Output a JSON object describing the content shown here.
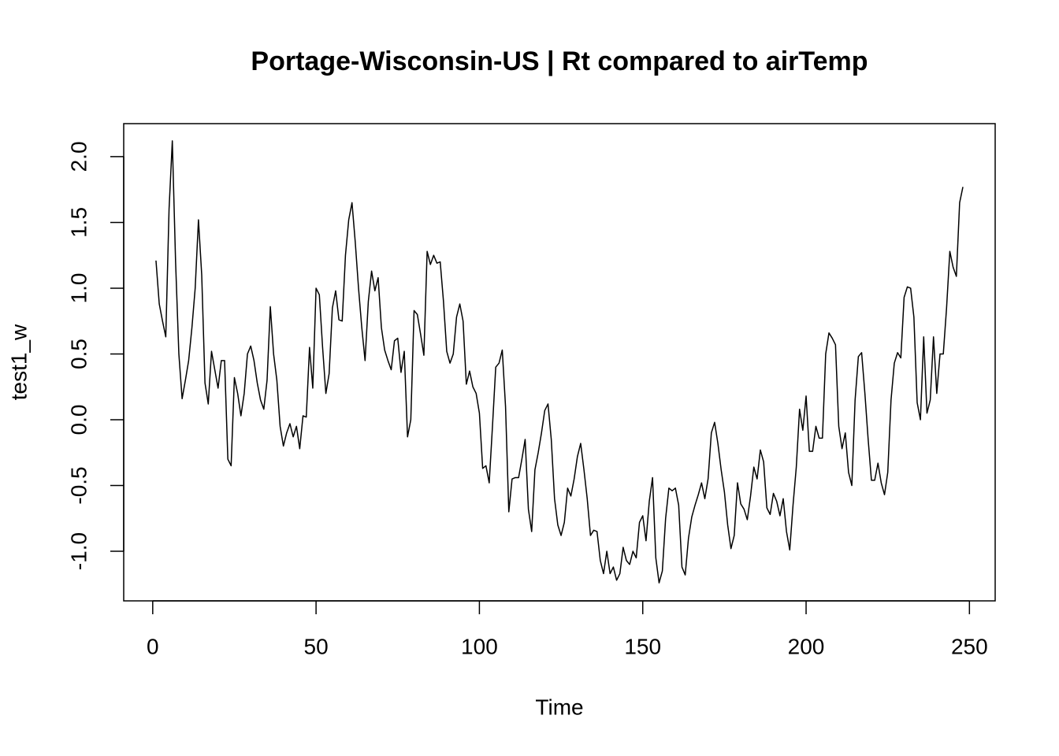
{
  "chart_data": {
    "type": "line",
    "title": "Portage-Wisconsin-US | Rt compared to airTemp",
    "x_label": "Time",
    "y_label": "test1_w",
    "x": [
      1,
      2,
      3,
      4,
      5,
      6,
      7,
      8,
      9,
      10,
      11,
      12,
      13,
      14,
      15,
      16,
      17,
      18,
      19,
      20,
      21,
      22,
      23,
      24,
      25,
      26,
      27,
      28,
      29,
      30,
      31,
      32,
      33,
      34,
      35,
      36,
      37,
      38,
      39,
      40,
      41,
      42,
      43,
      44,
      45,
      46,
      47,
      48,
      49,
      50,
      51,
      52,
      53,
      54,
      55,
      56,
      57,
      58,
      59,
      60,
      61,
      62,
      63,
      64,
      65,
      66,
      67,
      68,
      69,
      70,
      71,
      72,
      73,
      74,
      75,
      76,
      77,
      78,
      79,
      80,
      81,
      82,
      83,
      84,
      85,
      86,
      87,
      88,
      89,
      90,
      91,
      92,
      93,
      94,
      95,
      96,
      97,
      98,
      99,
      100,
      101,
      102,
      103,
      104,
      105,
      106,
      107,
      108,
      109,
      110,
      111,
      112,
      113,
      114,
      115,
      116,
      117,
      118,
      119,
      120,
      121,
      122,
      123,
      124,
      125,
      126,
      127,
      128,
      129,
      130,
      131,
      132,
      133,
      134,
      135,
      136,
      137,
      138,
      139,
      140,
      141,
      142,
      143,
      144,
      145,
      146,
      147,
      148,
      149,
      150,
      151,
      152,
      153,
      154,
      155,
      156,
      157,
      158,
      159,
      160,
      161,
      162,
      163,
      164,
      165,
      166,
      167,
      168,
      169,
      170,
      171,
      172,
      173,
      174,
      175,
      176,
      177,
      178,
      179,
      180,
      181,
      182,
      183,
      184,
      185,
      186,
      187,
      188,
      189,
      190,
      191,
      192,
      193,
      194,
      195,
      196,
      197,
      198,
      199,
      200,
      201,
      202,
      203,
      204,
      205,
      206,
      207,
      208,
      209,
      210,
      211,
      212,
      213,
      214,
      215,
      216,
      217,
      218,
      219,
      220,
      221,
      222,
      223,
      224,
      225,
      226,
      227,
      228,
      229,
      230,
      231,
      232,
      233,
      234,
      235,
      236,
      237,
      238,
      239,
      240,
      241,
      242,
      243,
      244,
      245,
      246,
      247,
      248
    ],
    "series": [
      {
        "name": "test1_w",
        "color": "#000000",
        "values": [
          1.21,
          0.88,
          0.75,
          0.63,
          1.6,
          2.12,
          1.2,
          0.5,
          0.16,
          0.3,
          0.45,
          0.7,
          1.0,
          1.52,
          1.1,
          0.28,
          0.12,
          0.52,
          0.38,
          0.24,
          0.45,
          0.45,
          -0.3,
          -0.35,
          0.32,
          0.2,
          0.03,
          0.2,
          0.5,
          0.56,
          0.45,
          0.28,
          0.15,
          0.08,
          0.3,
          0.86,
          0.5,
          0.3,
          -0.05,
          -0.2,
          -0.1,
          -0.03,
          -0.13,
          -0.05,
          -0.22,
          0.03,
          0.02,
          0.55,
          0.24,
          1.0,
          0.95,
          0.55,
          0.2,
          0.35,
          0.85,
          0.98,
          0.76,
          0.75,
          1.25,
          1.52,
          1.65,
          1.35,
          1.0,
          0.7,
          0.45,
          0.9,
          1.13,
          0.98,
          1.08,
          0.7,
          0.53,
          0.45,
          0.38,
          0.6,
          0.62,
          0.36,
          0.52,
          -0.13,
          0.0,
          0.83,
          0.8,
          0.65,
          0.49,
          1.28,
          1.18,
          1.25,
          1.19,
          1.2,
          0.9,
          0.52,
          0.43,
          0.5,
          0.78,
          0.88,
          0.75,
          0.27,
          0.37,
          0.25,
          0.2,
          0.05,
          -0.37,
          -0.35,
          -0.48,
          -0.05,
          0.4,
          0.43,
          0.53,
          0.1,
          -0.7,
          -0.45,
          -0.44,
          -0.44,
          -0.3,
          -0.15,
          -0.68,
          -0.85,
          -0.38,
          -0.25,
          -0.1,
          0.07,
          0.12,
          -0.15,
          -0.6,
          -0.8,
          -0.88,
          -0.78,
          -0.52,
          -0.58,
          -0.45,
          -0.28,
          -0.18,
          -0.38,
          -0.6,
          -0.88,
          -0.84,
          -0.85,
          -1.07,
          -1.17,
          -1.0,
          -1.17,
          -1.12,
          -1.22,
          -1.17,
          -0.97,
          -1.07,
          -1.1,
          -1.0,
          -1.05,
          -0.78,
          -0.73,
          -0.92,
          -0.62,
          -0.44,
          -1.05,
          -1.24,
          -1.15,
          -0.75,
          -0.52,
          -0.54,
          -0.52,
          -0.65,
          -1.12,
          -1.18,
          -0.9,
          -0.74,
          -0.65,
          -0.57,
          -0.48,
          -0.6,
          -0.45,
          -0.1,
          -0.02,
          -0.18,
          -0.38,
          -0.55,
          -0.8,
          -0.98,
          -0.88,
          -0.48,
          -0.64,
          -0.68,
          -0.76,
          -0.58,
          -0.36,
          -0.45,
          -0.23,
          -0.32,
          -0.67,
          -0.72,
          -0.56,
          -0.62,
          -0.73,
          -0.6,
          -0.85,
          -0.99,
          -0.65,
          -0.36,
          0.08,
          -0.08,
          0.18,
          -0.24,
          -0.24,
          -0.05,
          -0.14,
          -0.14,
          0.5,
          0.66,
          0.62,
          0.57,
          -0.05,
          -0.22,
          -0.1,
          -0.4,
          -0.5,
          0.15,
          0.48,
          0.51,
          0.2,
          -0.15,
          -0.46,
          -0.46,
          -0.33,
          -0.48,
          -0.57,
          -0.4,
          0.15,
          0.43,
          0.51,
          0.47,
          0.93,
          1.01,
          1.0,
          0.78,
          0.13,
          0.0,
          0.63,
          0.05,
          0.15,
          0.63,
          0.2,
          0.5,
          0.5,
          0.85,
          1.28,
          1.16,
          1.09,
          1.65,
          1.77
        ]
      }
    ],
    "xlim": [
      -8.88,
      257.88
    ],
    "xticks": [
      0,
      50,
      100,
      150,
      200,
      250
    ],
    "ylim": [
      -1.377,
      2.251
    ],
    "yticks": [
      {
        "value": -1,
        "label": "-1.0"
      },
      -0.5,
      {
        "value": 0,
        "label": "0.0"
      },
      0.5,
      {
        "value": 1,
        "label": "1.0"
      },
      1.5,
      {
        "value": 2,
        "label": "2.0"
      }
    ],
    "grid": false
  }
}
